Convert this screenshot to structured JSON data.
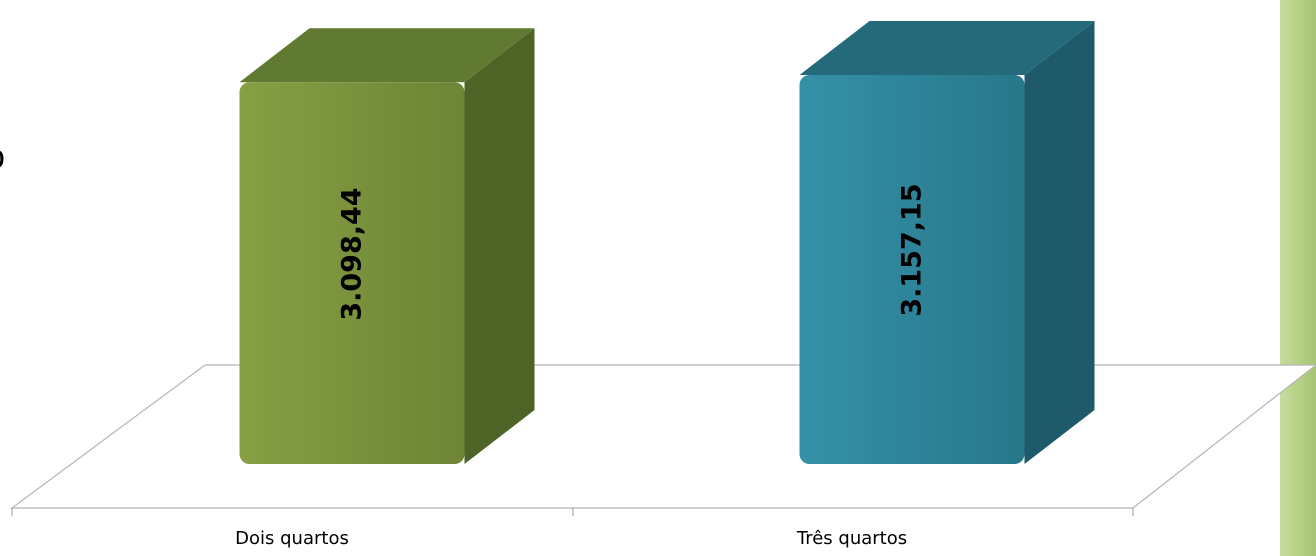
{
  "chart_data": {
    "type": "bar",
    "title": "",
    "xlabel": "",
    "ylabel": "",
    "categories": [
      "Dois quartos",
      "Três quartos"
    ],
    "values": [
      3098.44,
      3157.15
    ],
    "value_labels": [
      "3.098,44",
      "3.157,15"
    ],
    "bar_colors": [
      "#7a923c",
      "#2e8499"
    ],
    "bar_side_colors": [
      "#4e6326",
      "#1f5a6a"
    ],
    "bar_top_colors": [
      "#617a31",
      "#246a7b"
    ],
    "three_d": true,
    "grid": false,
    "legend": "none"
  },
  "decor": {
    "edge_glyph": "o"
  }
}
